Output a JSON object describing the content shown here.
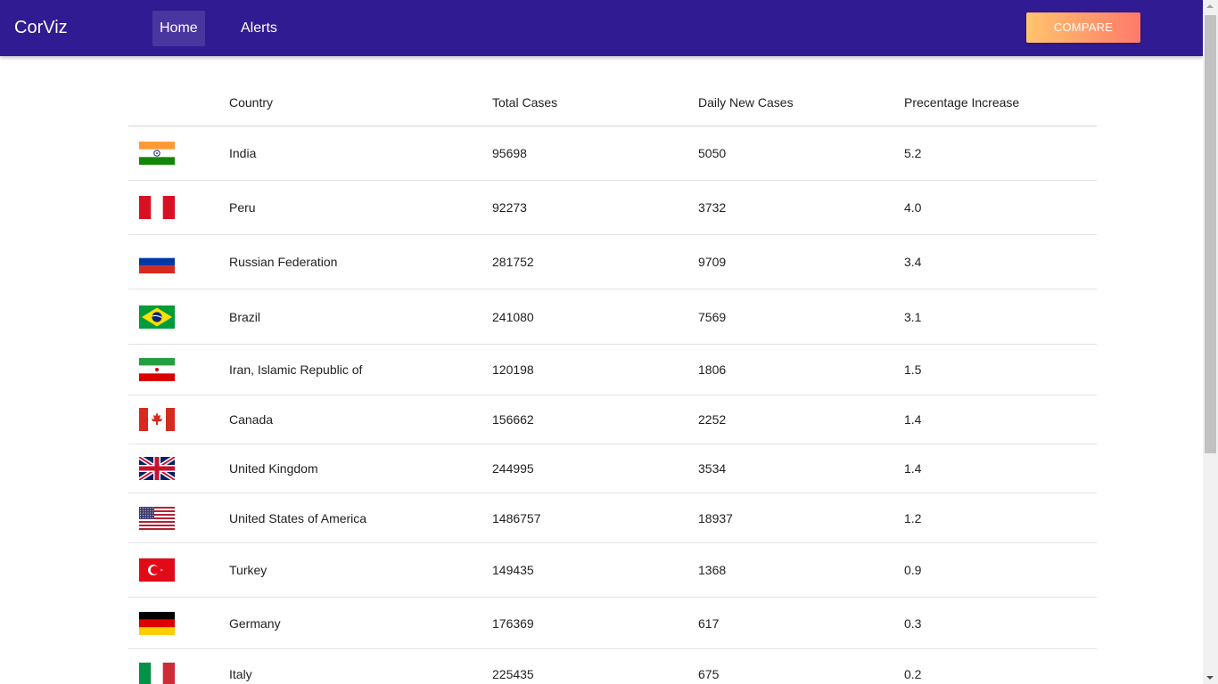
{
  "app": {
    "brand": "CorViz",
    "nav": [
      {
        "label": "Home",
        "active": true
      },
      {
        "label": "Alerts",
        "active": false
      }
    ],
    "compare_label": "COMPARE"
  },
  "colors": {
    "topbar": "#311b92",
    "compare_gradient": [
      "#ffc46e",
      "#ff7a6a"
    ]
  },
  "table": {
    "columns": [
      "",
      "Country",
      "Total Cases",
      "Daily New Cases",
      "Precentage Increase"
    ],
    "rows": [
      {
        "flag": "india-flag-icon",
        "country": "India",
        "total": "95698",
        "daily": "5050",
        "pct": "5.2"
      },
      {
        "flag": "peru-flag-icon",
        "country": "Peru",
        "total": "92273",
        "daily": "3732",
        "pct": "4.0"
      },
      {
        "flag": "russia-flag-icon",
        "country": "Russian Federation",
        "total": "281752",
        "daily": "9709",
        "pct": "3.4"
      },
      {
        "flag": "brazil-flag-icon",
        "country": "Brazil",
        "total": "241080",
        "daily": "7569",
        "pct": "3.1"
      },
      {
        "flag": "iran-flag-icon",
        "country": "Iran, Islamic Republic of",
        "total": "120198",
        "daily": "1806",
        "pct": "1.5"
      },
      {
        "flag": "canada-flag-icon",
        "country": "Canada",
        "total": "156662",
        "daily": "2252",
        "pct": "1.4"
      },
      {
        "flag": "uk-flag-icon",
        "country": "United Kingdom",
        "total": "244995",
        "daily": "3534",
        "pct": "1.4"
      },
      {
        "flag": "usa-flag-icon",
        "country": "United States of America",
        "total": "1486757",
        "daily": "18937",
        "pct": "1.2"
      },
      {
        "flag": "turkey-flag-icon",
        "country": "Turkey",
        "total": "149435",
        "daily": "1368",
        "pct": "0.9"
      },
      {
        "flag": "germany-flag-icon",
        "country": "Germany",
        "total": "176369",
        "daily": "617",
        "pct": "0.3"
      },
      {
        "flag": "italy-flag-icon",
        "country": "Italy",
        "total": "225435",
        "daily": "675",
        "pct": "0.2"
      }
    ]
  }
}
